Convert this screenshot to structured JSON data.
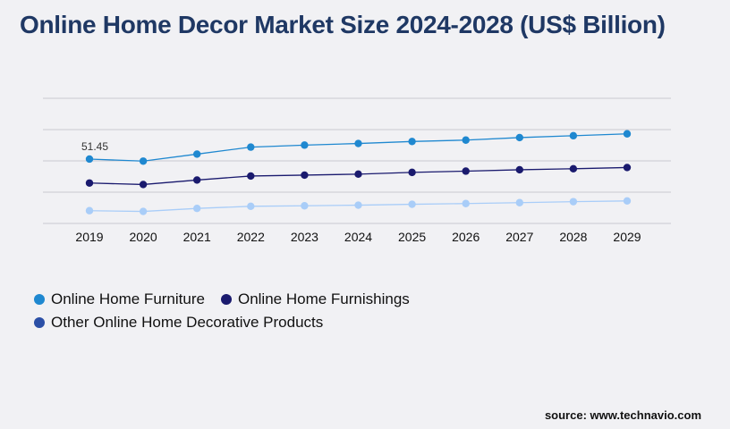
{
  "title": "Online Home Decor Market Size 2024-2028 (US$ Billion)",
  "source": "source: www.technavio.com",
  "chart_data": {
    "type": "line",
    "categories": [
      "2019",
      "2020",
      "2021",
      "2022",
      "2023",
      "2024",
      "2025",
      "2026",
      "2027",
      "2028",
      "2029"
    ],
    "ylim": [
      0,
      100
    ],
    "grid": true,
    "legend_position": "bottom-left",
    "series": [
      {
        "name": "Online Home Furniture",
        "color": "#1f88d0",
        "values": [
          51.45,
          49.8,
          55.4,
          61.0,
          62.6,
          63.9,
          65.5,
          66.6,
          68.6,
          70.1,
          71.6
        ]
      },
      {
        "name": "Online Home Furnishings",
        "color": "#1a1a6e",
        "values": [
          32.3,
          31.1,
          34.7,
          37.9,
          38.6,
          39.4,
          40.8,
          41.8,
          42.9,
          43.7,
          44.7
        ]
      },
      {
        "name": "Other Online Home Decorative Products",
        "color": "#a9cdf8",
        "values": [
          10.2,
          9.6,
          12.0,
          13.7,
          14.1,
          14.6,
          15.3,
          15.9,
          16.6,
          17.4,
          18.0
        ]
      }
    ],
    "data_labels": [
      {
        "series": 0,
        "index": 0,
        "text": "51.45"
      }
    ]
  },
  "legend": {
    "rows": [
      [
        {
          "label": "Online Home Furniture",
          "color": "#1f88d0"
        },
        {
          "label": "Online Home Furnishings",
          "color": "#1a1a6e"
        }
      ],
      [
        {
          "label": "Other Online Home Decorative Products",
          "color": "#2b4fa6"
        }
      ]
    ]
  }
}
